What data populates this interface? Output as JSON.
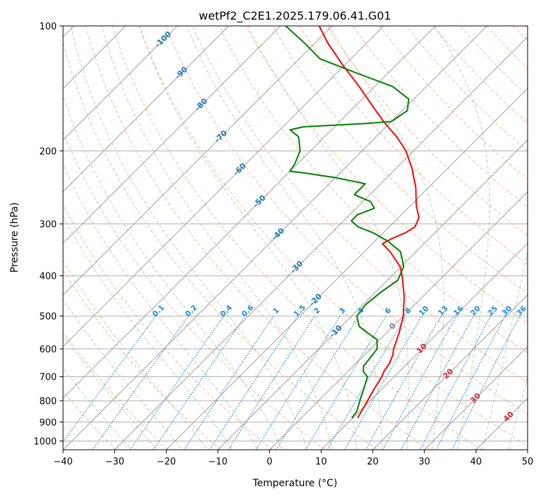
{
  "chart_data": {
    "type": "line",
    "subtype": "skew-t log-p diagram",
    "title": "wetPf2_C2E1.2025.179.06.41.G01",
    "xlabel": "Temperature (°C)",
    "ylabel": "Pressure (hPa)",
    "xlim": [
      -40,
      50
    ],
    "ylim": [
      1050,
      100
    ],
    "y_scale": "log",
    "grid": true,
    "x_ticks": [
      -40,
      -30,
      -20,
      -10,
      0,
      10,
      20,
      30,
      40,
      50
    ],
    "y_ticks": [
      1000,
      900,
      800,
      700,
      600,
      500,
      400,
      300,
      200,
      100
    ],
    "colors": {
      "temperature": "#ff0000",
      "dewpoint": "#008000",
      "isotherm": "#a0a0a0",
      "dry_adiabat": "#f7a080",
      "moist_adiabat": "#80c080",
      "mixing_ratio": "#1e88e5",
      "isotherm_label": "#1f77b4",
      "dry_adiabat_label": "#d62728",
      "zero_isotherm": "#808080"
    },
    "series": [
      {
        "name": "",
        "role": "temperature",
        "points": [
          {
            "p": 880,
            "t": 10.9
          },
          {
            "p": 850,
            "t": 10.4
          },
          {
            "p": 800,
            "t": 9.5
          },
          {
            "p": 750,
            "t": 8.5
          },
          {
            "p": 700,
            "t": 7.6
          },
          {
            "p": 680,
            "t": 7.0
          },
          {
            "p": 650,
            "t": 6.5
          },
          {
            "p": 620,
            "t": 5.5
          },
          {
            "p": 600,
            "t": 4.5
          },
          {
            "p": 550,
            "t": 2.5
          },
          {
            "p": 500,
            "t": 0.0
          },
          {
            "p": 450,
            "t": -3.5
          },
          {
            "p": 400,
            "t": -8.0
          },
          {
            "p": 380,
            "t": -10.2
          },
          {
            "p": 350,
            "t": -15.0
          },
          {
            "p": 335,
            "t": -18.0
          },
          {
            "p": 325,
            "t": -17.2
          },
          {
            "p": 315,
            "t": -15.7
          },
          {
            "p": 305,
            "t": -15.0
          },
          {
            "p": 290,
            "t": -16.0
          },
          {
            "p": 270,
            "t": -19.0
          },
          {
            "p": 245,
            "t": -22.5
          },
          {
            "p": 220,
            "t": -27.0
          },
          {
            "p": 200,
            "t": -31.5
          },
          {
            "p": 185,
            "t": -36.0
          },
          {
            "p": 170,
            "t": -41.5
          },
          {
            "p": 155,
            "t": -47.0
          },
          {
            "p": 140,
            "t": -53.0
          },
          {
            "p": 125,
            "t": -60.0
          },
          {
            "p": 110,
            "t": -67.5
          },
          {
            "p": 100,
            "t": -72.5
          }
        ]
      },
      {
        "name": "",
        "role": "dewpoint",
        "points": [
          {
            "p": 880,
            "t": 9.8
          },
          {
            "p": 850,
            "t": 9.5
          },
          {
            "p": 800,
            "t": 8.0
          },
          {
            "p": 750,
            "t": 6.5
          },
          {
            "p": 700,
            "t": 4.8
          },
          {
            "p": 680,
            "t": 3.0
          },
          {
            "p": 660,
            "t": 2.0
          },
          {
            "p": 640,
            "t": 1.8
          },
          {
            "p": 600,
            "t": 1.3
          },
          {
            "p": 570,
            "t": -0.5
          },
          {
            "p": 550,
            "t": -3.5
          },
          {
            "p": 530,
            "t": -6.5
          },
          {
            "p": 500,
            "t": -9.0
          },
          {
            "p": 470,
            "t": -9.5
          },
          {
            "p": 440,
            "t": -9.0
          },
          {
            "p": 410,
            "t": -8.0
          },
          {
            "p": 380,
            "t": -9.5
          },
          {
            "p": 350,
            "t": -13.0
          },
          {
            "p": 330,
            "t": -17.5
          },
          {
            "p": 315,
            "t": -22.0
          },
          {
            "p": 305,
            "t": -26.0
          },
          {
            "p": 295,
            "t": -28.5
          },
          {
            "p": 285,
            "t": -28.5
          },
          {
            "p": 275,
            "t": -26.5
          },
          {
            "p": 265,
            "t": -28.5
          },
          {
            "p": 255,
            "t": -33.0
          },
          {
            "p": 240,
            "t": -33.0
          },
          {
            "p": 232,
            "t": -40.0
          },
          {
            "p": 226,
            "t": -47.0
          },
          {
            "p": 224,
            "t": -50.0
          },
          {
            "p": 215,
            "t": -50.5
          },
          {
            "p": 200,
            "t": -52.0
          },
          {
            "p": 185,
            "t": -55.0
          },
          {
            "p": 178,
            "t": -58.0
          },
          {
            "p": 175,
            "t": -56.0
          },
          {
            "p": 172,
            "t": -45.0
          },
          {
            "p": 170,
            "t": -40.0
          },
          {
            "p": 160,
            "t": -39.0
          },
          {
            "p": 150,
            "t": -41.0
          },
          {
            "p": 140,
            "t": -46.5
          },
          {
            "p": 130,
            "t": -56.0
          },
          {
            "p": 120,
            "t": -66.0
          },
          {
            "p": 110,
            "t": -72.0
          },
          {
            "p": 100,
            "t": -79.0
          }
        ]
      }
    ],
    "isotherm_labels": [
      "-100",
      "-90",
      "-80",
      "-70",
      "-60",
      "-50",
      "-40",
      "-30",
      "-20",
      "-10"
    ],
    "zero_isotherm_label": "0",
    "dry_adiabat_labels": [
      "10",
      "20",
      "30",
      "40"
    ],
    "mixing_ratio_labels": [
      "0.1",
      "0.2",
      "0.4",
      "0.6",
      "1",
      "1.5",
      "2",
      "3",
      "4",
      "6",
      "8",
      "10",
      "13",
      "16",
      "20",
      "25",
      "30",
      "36"
    ]
  }
}
